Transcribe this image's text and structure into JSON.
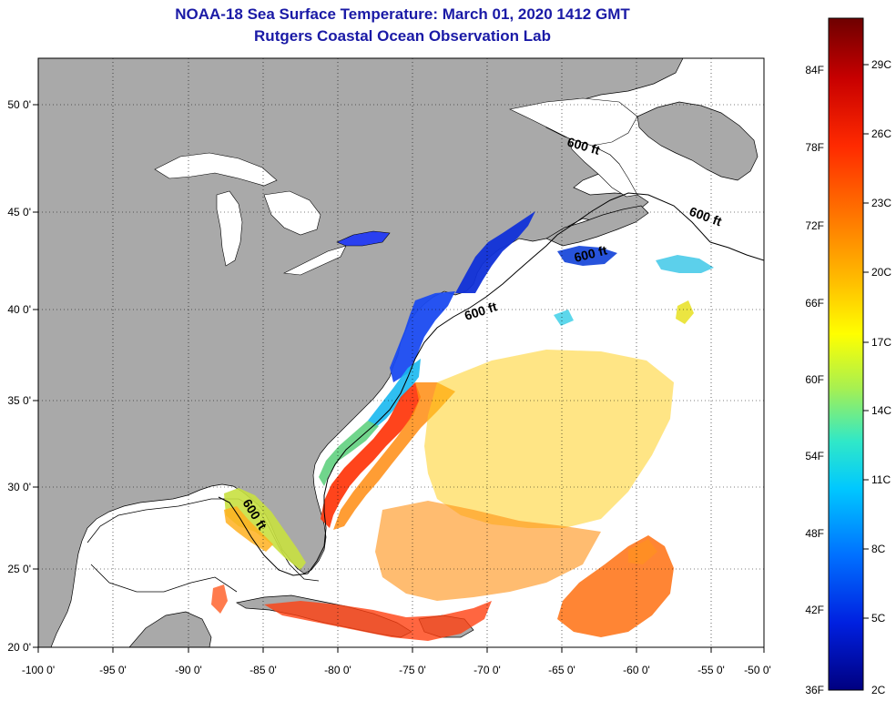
{
  "title": {
    "line1": "NOAA-18 Sea Surface Temperature:  March 01, 2020 1412 GMT",
    "line2": "Rutgers Coastal Ocean Observation Lab"
  },
  "axes": {
    "longitude_labels": [
      "-100 0'",
      "-95 0'",
      "-90 0'",
      "-85 0'",
      "-80 0'",
      "-75 0'",
      "-70 0'",
      "-65 0'",
      "-60 0'",
      "-55 0'",
      "-50 0'"
    ],
    "latitude_labels": [
      "20 0'",
      "25 0'",
      "30 0'",
      "35 0'",
      "40 0'",
      "45 0'",
      "50 0'"
    ]
  },
  "contour_labels": [
    "600 ft",
    "600 ft",
    "600 ft",
    "600 ft",
    "600 ft"
  ],
  "colorbar": {
    "fahrenheit_labels": [
      "84F",
      "78F",
      "72F",
      "66F",
      "60F",
      "54F",
      "48F",
      "42F",
      "36F"
    ],
    "celsius_labels": [
      "29C",
      "26C",
      "23C",
      "20C",
      "17C",
      "14C",
      "11C",
      "8C",
      "5C",
      "2C"
    ],
    "colors": [
      "#6e0000",
      "#c80000",
      "#ff2a00",
      "#ff7a00",
      "#ffc400",
      "#ffff00",
      "#a8f050",
      "#30e8c8",
      "#00c8ff",
      "#0070ff",
      "#0020e0",
      "#000080"
    ]
  },
  "colors": {
    "land": "#a9a9a9",
    "water_no_data": "#ffffff",
    "title_text": "#1a1aa6"
  }
}
